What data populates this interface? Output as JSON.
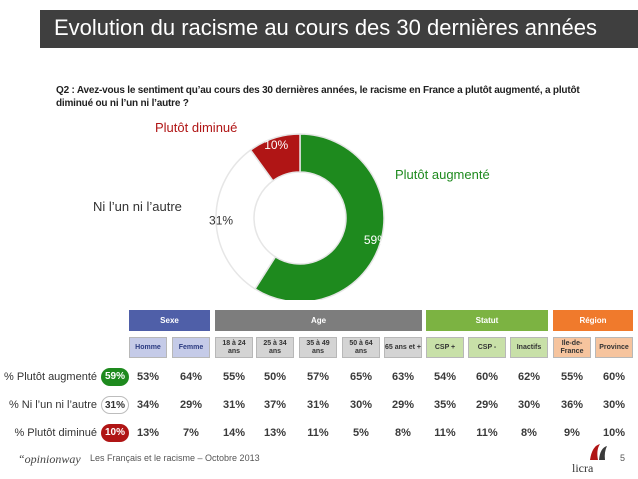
{
  "title": "Evolution du racisme au cours des 30 dernières années",
  "question": "Q2 : Avez-vous le sentiment qu’au cours des 30 dernières années, le racisme en France a plutôt augmenté, a plutôt diminué ou ni l’un ni l’autre ?",
  "chart_data": [
    {
      "type": "pie",
      "variant": "donut",
      "categories": [
        "Plutôt augmenté",
        "Ni l’un ni l’autre",
        "Plutôt diminué"
      ],
      "values": [
        59,
        31,
        10
      ],
      "value_labels": [
        "59%",
        "31%",
        "10%"
      ],
      "colors": [
        "#1e8a1e",
        "#ffffff",
        "#b01515"
      ]
    },
    {
      "type": "table",
      "groups": [
        {
          "label": "Sexe",
          "color": "#4f5fa8"
        },
        {
          "label": "Age",
          "color": "#7d7d7d"
        },
        {
          "label": "Statut",
          "color": "#7cb342"
        },
        {
          "label": "Région",
          "color": "#f07a2c"
        }
      ],
      "columns": [
        "Homme",
        "Femme",
        "18 à 24 ans",
        "25 à 34 ans",
        "35 à 49 ans",
        "50 à 64 ans",
        "65 ans et +",
        "CSP +",
        "CSP -",
        "Inactifs",
        "Ile-de-France",
        "Province"
      ],
      "rows": [
        {
          "label": "% Plutôt augmenté",
          "total": "59%",
          "values": [
            "53%",
            "64%",
            "55%",
            "50%",
            "57%",
            "65%",
            "63%",
            "54%",
            "60%",
            "62%",
            "55%",
            "60%"
          ]
        },
        {
          "label": "% Ni l’un ni l’autre",
          "total": "31%",
          "values": [
            "34%",
            "29%",
            "31%",
            "37%",
            "31%",
            "30%",
            "29%",
            "35%",
            "29%",
            "30%",
            "36%",
            "30%"
          ]
        },
        {
          "label": "% Plutôt diminué",
          "total": "10%",
          "values": [
            "13%",
            "7%",
            "14%",
            "13%",
            "11%",
            "5%",
            "8%",
            "11%",
            "11%",
            "8%",
            "9%",
            "10%"
          ]
        }
      ]
    }
  ],
  "colors": {
    "sub_sexe": "#c5cbe8",
    "sub_age": "#d4d4d4",
    "sub_statut": "#c8e0a8",
    "sub_region": "#f6c49e",
    "title_bg": "#3f3f3f"
  },
  "footer": {
    "brand": "“opinionway",
    "text": "Les Français et le racisme – Octobre 2013",
    "page": "5",
    "logo": "licra"
  }
}
